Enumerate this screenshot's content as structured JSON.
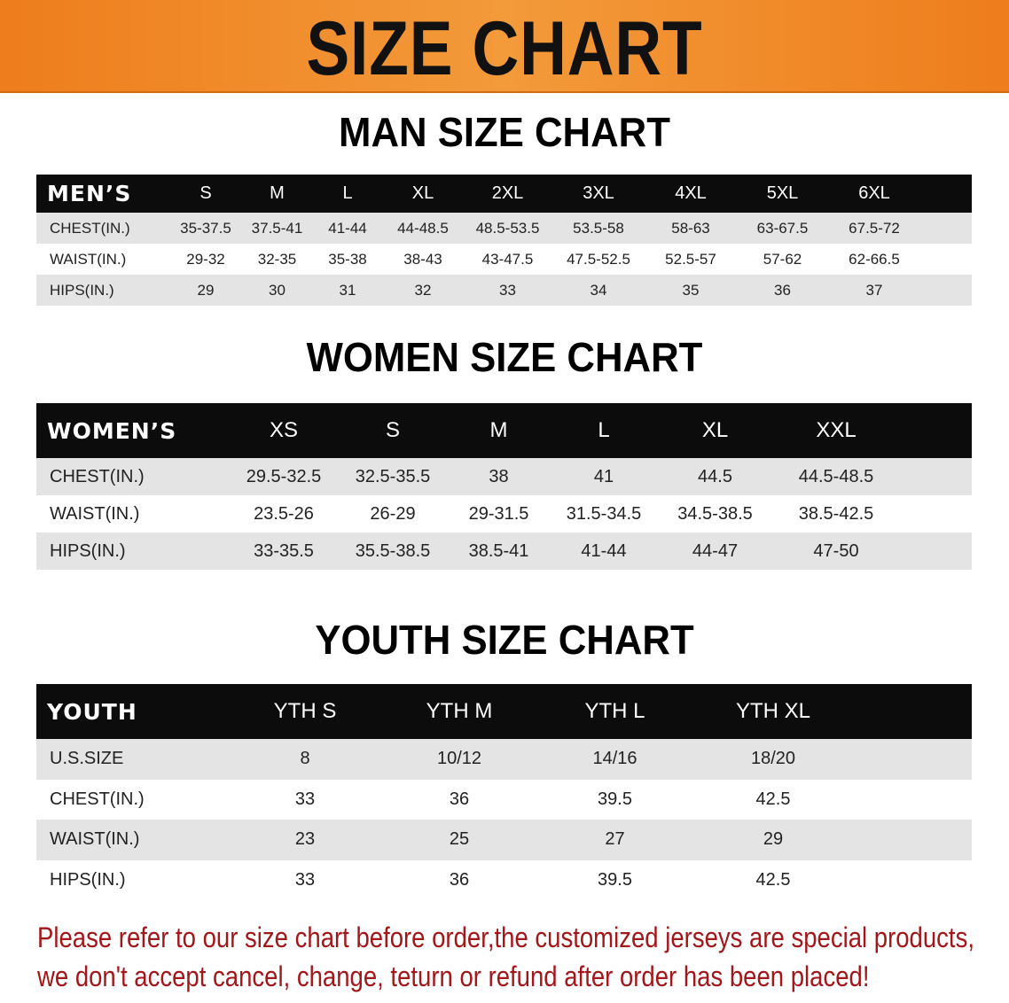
{
  "banner_title": "SIZE CHART",
  "men": {
    "title": "MAN SIZE CHART",
    "header": [
      "MEN’S",
      "S",
      "M",
      "L",
      "XL",
      "2XL",
      "3XL",
      "4XL",
      "5XL",
      "6XL"
    ],
    "rows": [
      [
        "CHEST(IN.)",
        "35-37.5",
        "37.5-41",
        "41-44",
        "44-48.5",
        "48.5-53.5",
        "53.5-58",
        "58-63",
        "63-67.5",
        "67.5-72"
      ],
      [
        "WAIST(IN.)",
        "29-32",
        "32-35",
        "35-38",
        "38-43",
        "43-47.5",
        "47.5-52.5",
        "52.5-57",
        "57-62",
        "62-66.5"
      ],
      [
        "HIPS(IN.)",
        "29",
        "30",
        "31",
        "32",
        "33",
        "34",
        "35",
        "36",
        "37"
      ]
    ]
  },
  "women": {
    "title": "WOMEN SIZE CHART",
    "header": [
      "WOMEN’S",
      "XS",
      "S",
      "M",
      "L",
      "XL",
      "XXL"
    ],
    "rows": [
      [
        "CHEST(IN.)",
        "29.5-32.5",
        "32.5-35.5",
        "38",
        "41",
        "44.5",
        "44.5-48.5"
      ],
      [
        "WAIST(IN.)",
        "23.5-26",
        "26-29",
        "29-31.5",
        "31.5-34.5",
        "34.5-38.5",
        "38.5-42.5"
      ],
      [
        "HIPS(IN.)",
        "33-35.5",
        "35.5-38.5",
        "38.5-41",
        "41-44",
        "44-47",
        "47-50"
      ]
    ]
  },
  "youth": {
    "title": "YOUTH SIZE CHART",
    "header": [
      "YOUTH",
      "YTH S",
      "YTH M",
      "YTH L",
      "YTH XL"
    ],
    "rows": [
      [
        "U.S.SIZE",
        "8",
        "10/12",
        "14/16",
        "18/20"
      ],
      [
        "CHEST(IN.)",
        "33",
        "36",
        "39.5",
        "42.5"
      ],
      [
        "WAIST(IN.)",
        "23",
        "25",
        "27",
        "29"
      ],
      [
        "HIPS(IN.)",
        "33",
        "36",
        "39.5",
        "42.5"
      ]
    ]
  },
  "note": [
    "Please refer to our size chart before order,the customized jerseys are special products,",
    "we don't accept cancel, change, teturn or refund after order has been placed!"
  ],
  "colors": {
    "banner": "#ee7d1c",
    "header_bg": "#0c0c0c",
    "row_grey": "#e4e4e4",
    "note": "#a3161a"
  }
}
